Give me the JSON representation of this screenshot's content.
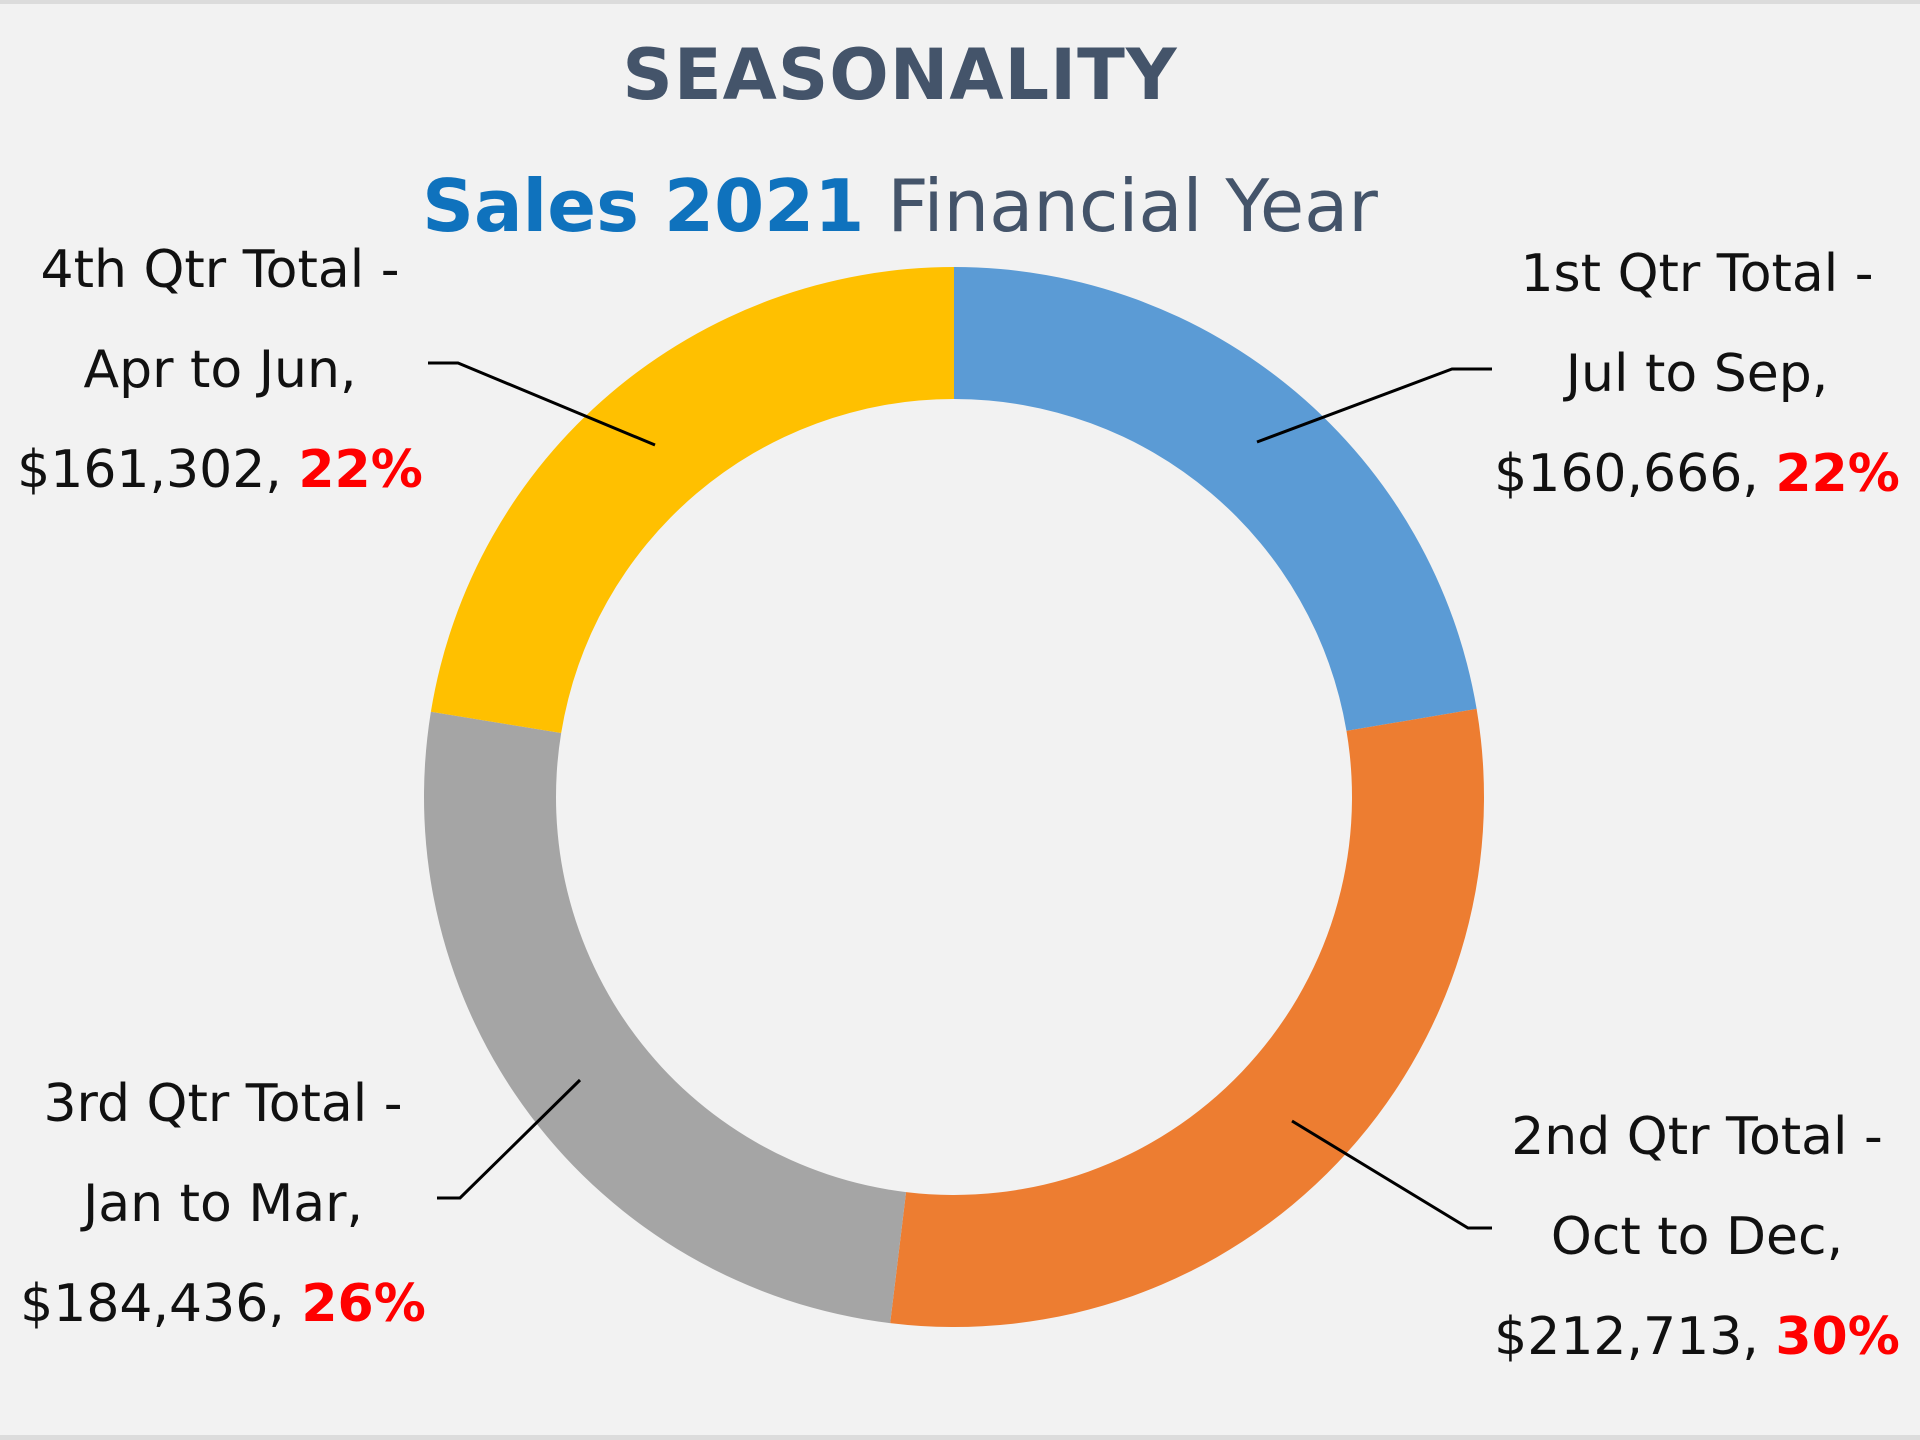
{
  "header": {
    "title": "SEASONALITY",
    "subtitle_strong": "Sales 2021",
    "subtitle_rest": "Financial Year"
  },
  "colors": {
    "background": "#f2f2f2",
    "title": "#44546a",
    "subtitle_accent": "#0f72bd",
    "percent": "#ff0000"
  },
  "chart_data": {
    "type": "pie",
    "variant": "doughnut",
    "start": "top",
    "direction": "clockwise",
    "slices": [
      {
        "line1": "1st Qtr Total -",
        "line2": "Jul to Sep,",
        "amount": "$160,666,",
        "pct_label": "22%",
        "value": 160666,
        "color": "#5b9bd5",
        "label_side": "right"
      },
      {
        "line1": "2nd Qtr Total -",
        "line2": "Oct to Dec,",
        "amount": "$212,713,",
        "pct_label": "30%",
        "value": 212713,
        "color": "#ed7d31",
        "label_side": "right"
      },
      {
        "line1": "3rd Qtr Total -",
        "line2": "Jan to Mar,",
        "amount": "$184,436,",
        "pct_label": "26%",
        "value": 184436,
        "color": "#a5a5a5",
        "label_side": "left"
      },
      {
        "line1": "4th Qtr Total -",
        "line2": "Apr to Jun,",
        "amount": "$161,302,",
        "pct_label": "22%",
        "value": 161302,
        "color": "#ffc000",
        "label_side": "left"
      }
    ]
  }
}
